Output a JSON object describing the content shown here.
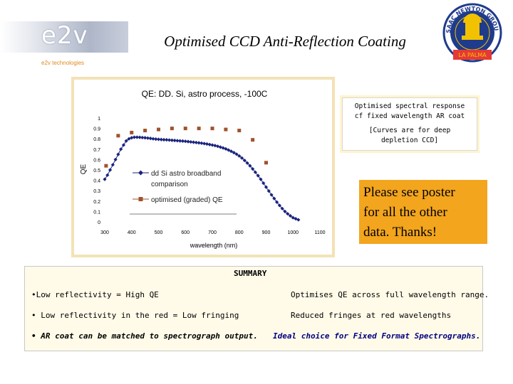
{
  "header": {
    "logo_text": "e2v",
    "logo_subtitle": "e2v technologies",
    "title": "Optimised CCD Anti-Reflection Coating"
  },
  "emblem": {
    "top_text": "ISAAC NEWTON GROUP",
    "bottom_text": "LA PALMA"
  },
  "chart_data": {
    "type": "scatter",
    "title": "QE:  DD. Si, astro process, -100C",
    "xlabel": "wavelength (nm)",
    "ylabel": "QE",
    "xlim": [
      300,
      1100
    ],
    "ylim": [
      0,
      1
    ],
    "x_ticks": [
      "300",
      "400",
      "500",
      "600",
      "700",
      "800",
      "900",
      "1000",
      "1100"
    ],
    "y_ticks": [
      "0",
      "0.1",
      "0.2",
      "0.3",
      "0.4",
      "0.5",
      "0.6",
      "0.7",
      "0.8",
      "0.9",
      "1"
    ],
    "series": [
      {
        "name": "dd Si astro broadband comparison",
        "marker": "diamond",
        "color": "#1a237e",
        "x": [
          300,
          310,
          320,
          330,
          340,
          350,
          360,
          370,
          380,
          390,
          400,
          410,
          420,
          430,
          440,
          450,
          460,
          470,
          480,
          490,
          500,
          510,
          520,
          530,
          540,
          550,
          560,
          570,
          580,
          590,
          600,
          610,
          620,
          630,
          640,
          650,
          660,
          670,
          680,
          690,
          700,
          710,
          720,
          730,
          740,
          750,
          760,
          770,
          780,
          790,
          800,
          810,
          820,
          830,
          840,
          850,
          860,
          870,
          880,
          890,
          900,
          910,
          920,
          930,
          940,
          950,
          960,
          970,
          980,
          990,
          1000,
          1010,
          1020
        ],
        "values": [
          0.41,
          0.45,
          0.5,
          0.55,
          0.6,
          0.65,
          0.7,
          0.74,
          0.78,
          0.8,
          0.81,
          0.815,
          0.815,
          0.814,
          0.812,
          0.81,
          0.807,
          0.804,
          0.8,
          0.797,
          0.795,
          0.793,
          0.791,
          0.79,
          0.788,
          0.786,
          0.784,
          0.782,
          0.78,
          0.778,
          0.776,
          0.773,
          0.77,
          0.767,
          0.764,
          0.761,
          0.758,
          0.754,
          0.75,
          0.745,
          0.74,
          0.735,
          0.728,
          0.72,
          0.712,
          0.703,
          0.692,
          0.68,
          0.667,
          0.652,
          0.635,
          0.615,
          0.592,
          0.567,
          0.54,
          0.51,
          0.478,
          0.445,
          0.41,
          0.373,
          0.335,
          0.297,
          0.26,
          0.225,
          0.19,
          0.158,
          0.128,
          0.1,
          0.078,
          0.058,
          0.04,
          0.03,
          0.02
        ]
      },
      {
        "name": "optimised (graded) QE",
        "marker": "square",
        "color": "#a0522d",
        "x": [
          305,
          350,
          400,
          450,
          500,
          550,
          600,
          650,
          700,
          750,
          800,
          850,
          900
        ],
        "values": [
          0.54,
          0.83,
          0.86,
          0.88,
          0.89,
          0.9,
          0.9,
          0.9,
          0.9,
          0.89,
          0.88,
          0.79,
          0.57
        ]
      }
    ]
  },
  "callout_top": {
    "line1": "Optimised spectral response",
    "line2": "cf fixed wavelength AR coat",
    "line3": "[Curves are for deep",
    "line4": "depletion CCD]"
  },
  "callout_poster": {
    "line1": "Please see poster",
    "line2": "for all the other",
    "line3": "data. Thanks!"
  },
  "summary": {
    "title": "SUMMARY",
    "rows": [
      {
        "left": "•Low reflectivity = High QE",
        "right": "Optimises QE across full wavelength range."
      },
      {
        "left": "• Low reflectivity in the red  = Low fringing",
        "right": "Reduced fringes at red wavelengths"
      },
      {
        "left": "• AR coat can be matched to spectrograph output.",
        "right": "Ideal choice for Fixed Format Spectrographs."
      }
    ]
  }
}
